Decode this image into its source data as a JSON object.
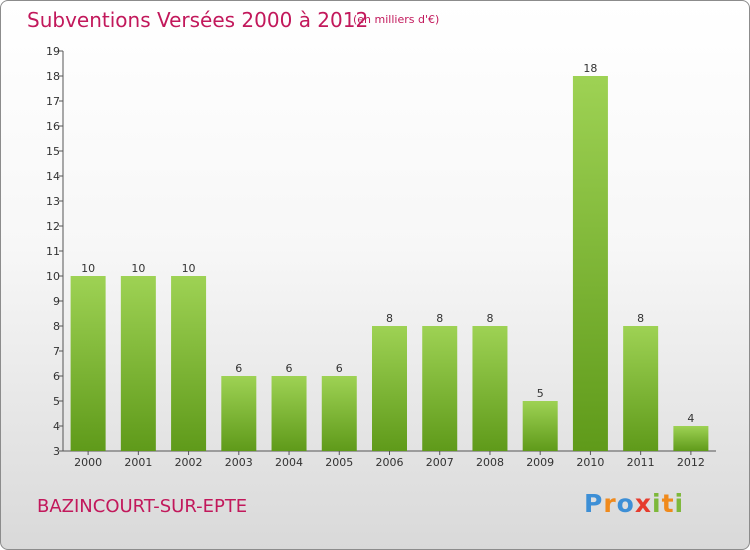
{
  "header": {
    "title": "Subventions Versées 2000 à 2012",
    "subtitle": "(en milliers d'€)"
  },
  "footer": {
    "commune": "BAZINCOURT-SUR-EPTE",
    "logo_text": "Proxiti"
  },
  "colors": {
    "title": "#c2185b",
    "bar_top": "#9ed254",
    "bar_bottom": "#5f9a1a",
    "logo_letters": [
      "#3d8fd6",
      "#f08a1c",
      "#3d8fd6",
      "#e63c2e",
      "#7db83a",
      "#f08a1c",
      "#7db83a"
    ]
  },
  "chart_data": {
    "type": "bar",
    "categories": [
      "2000",
      "2001",
      "2002",
      "2003",
      "2004",
      "2005",
      "2006",
      "2007",
      "2008",
      "2009",
      "2010",
      "2011",
      "2012"
    ],
    "values": [
      10,
      10,
      10,
      6,
      6,
      6,
      8,
      8,
      8,
      5,
      18,
      8,
      4
    ],
    "ylim": [
      3,
      19
    ],
    "yticks": [
      3,
      4,
      5,
      6,
      7,
      8,
      9,
      10,
      11,
      12,
      13,
      14,
      15,
      16,
      17,
      18,
      19
    ],
    "grid": false,
    "data_labels": true
  }
}
